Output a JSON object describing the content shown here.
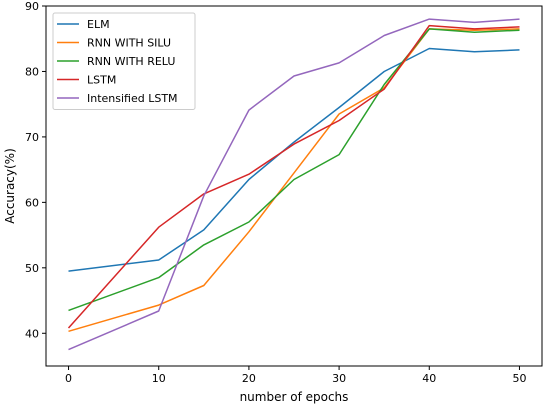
{
  "chart_data": {
    "type": "line",
    "title": "",
    "xlabel": "number of epochs",
    "ylabel": "Accuracy(%)",
    "xlim": [
      -2.5,
      52.5
    ],
    "ylim": [
      35,
      90
    ],
    "xticks": [
      0,
      10,
      20,
      30,
      40,
      50
    ],
    "yticks": [
      40,
      50,
      60,
      70,
      80,
      90
    ],
    "grid": false,
    "legend_position": "top-left",
    "x": [
      0,
      10,
      15,
      20,
      25,
      30,
      35,
      40,
      45,
      50
    ],
    "series": [
      {
        "name": "ELM",
        "color": "#1f77b4",
        "values": [
          49.5,
          51.2,
          55.8,
          63.5,
          69.2,
          74.5,
          80.0,
          83.5,
          83.0,
          83.3
        ]
      },
      {
        "name": "RNN WITH SILU",
        "color": "#ff7f0e",
        "values": [
          40.3,
          44.3,
          47.3,
          55.5,
          64.5,
          73.5,
          77.5,
          86.5,
          86.3,
          86.5
        ]
      },
      {
        "name": "RNN WITH RELU",
        "color": "#2ca02c",
        "values": [
          43.5,
          48.5,
          53.5,
          57.0,
          63.5,
          67.3,
          78.0,
          86.5,
          86.0,
          86.3
        ]
      },
      {
        "name": "LSTM",
        "color": "#d62728",
        "values": [
          40.8,
          56.2,
          61.3,
          64.3,
          68.9,
          72.5,
          77.3,
          87.0,
          86.5,
          86.8
        ]
      },
      {
        "name": "Intensified LSTM",
        "color": "#9467bd",
        "values": [
          37.5,
          43.4,
          61.0,
          74.1,
          79.3,
          81.3,
          85.5,
          88.0,
          87.5,
          88.0
        ]
      }
    ]
  }
}
